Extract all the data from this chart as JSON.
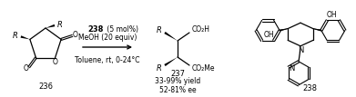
{
  "figsize": [
    3.91,
    1.07
  ],
  "dpi": 100,
  "bg_color": "#ffffff",
  "text_color": "#000000",
  "compound236_label": "236",
  "compound237_label": "237",
  "compound238_label": "238",
  "cond1_bold": "238",
  "cond1_rest": " (5 mol%)",
  "cond2": "MeOH (20 equiv)",
  "cond3": "Toluene, rt, 0-24°C",
  "yield_line1": "33-99% yield",
  "yield_line2": "52-81% ee"
}
